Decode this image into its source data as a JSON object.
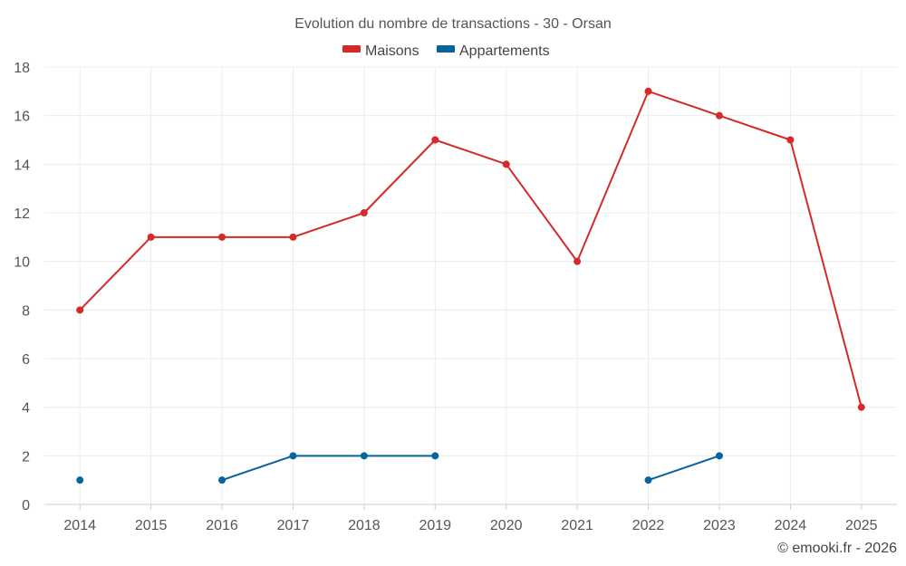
{
  "chart_data": {
    "type": "line",
    "title": "Evolution du nombre de transactions - 30 - Orsan",
    "categories": [
      "2014",
      "2015",
      "2016",
      "2017",
      "2018",
      "2019",
      "2020",
      "2021",
      "2022",
      "2023",
      "2024",
      "2025"
    ],
    "ylim": [
      0,
      18
    ],
    "yticks": [
      0,
      2,
      4,
      6,
      8,
      10,
      12,
      14,
      16,
      18
    ],
    "grid": true,
    "legend_position": "top-center",
    "series": [
      {
        "name": "Maisons",
        "color": "#d42a2a",
        "values": [
          8,
          11,
          11,
          11,
          12,
          15,
          14,
          10,
          17,
          16,
          15,
          4
        ]
      },
      {
        "name": "Appartements",
        "color": "#07649c",
        "values": [
          1,
          null,
          1,
          2,
          2,
          2,
          null,
          null,
          1,
          2,
          null,
          null
        ]
      }
    ]
  },
  "credit": "© emooki.fr - 2026"
}
